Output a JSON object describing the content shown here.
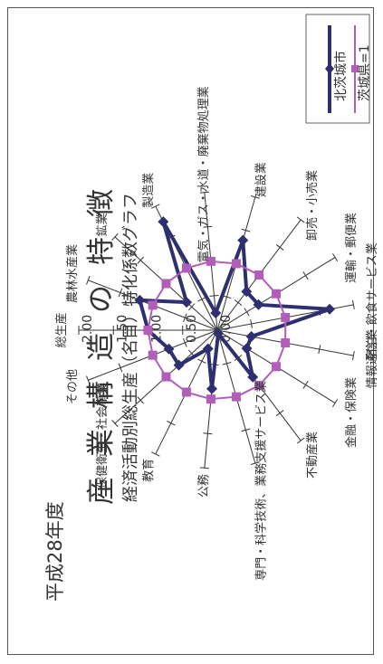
{
  "header": {
    "year": "平成28年度",
    "title": "産業構造の特徴",
    "subtitle": "経済活動別総生産（名目）特化係数グラフ"
  },
  "legend": {
    "items": [
      {
        "label": "北茨城市",
        "color": "#2e2f6e",
        "marker": "diamond"
      },
      {
        "label": "茨城県=1",
        "color": "#b15eb8",
        "marker": "square"
      }
    ]
  },
  "chart_data": {
    "type": "radar",
    "title": "産業構造の特徴",
    "subtitle": "経済活動別総生産（名目）特化係数グラフ",
    "categories": [
      "総生産",
      "農林水産業",
      "鉱業",
      "製造業",
      "電気・ガス・水道・廃棄物処理業",
      "建設業",
      "卸売・小売業",
      "運輸・郵便業",
      "宿泊・飲食サービス業",
      "情報通信業",
      "金融・保険業",
      "不動産業",
      "専門・科学技術、業務支援サービス業",
      "公務",
      "教育",
      "保健衛生・社会事業",
      "その他"
    ],
    "radial_ticks": [
      0.0,
      0.5,
      1.0,
      1.5,
      2.0
    ],
    "radial_tick_labels": [
      "0.00",
      "0.50",
      "1.00",
      "1.50",
      "2.00"
    ],
    "rlim": [
      0,
      2.0
    ],
    "series": [
      {
        "name": "北茨城市",
        "values": [
          1.0,
          1.2,
          0.6,
          1.75,
          0.25,
          1.35,
          0.7,
          0.7,
          1.65,
          0.5,
          0.5,
          0.85,
          0.05,
          0.85,
          0.3,
          0.75,
          0.75
        ],
        "color": "#2e2f6e"
      },
      {
        "name": "茨城県=1",
        "values": [
          1,
          1,
          1,
          1,
          1,
          1,
          1,
          1,
          1,
          1,
          1,
          1,
          1,
          1,
          1,
          1,
          1
        ],
        "color": "#b15eb8"
      }
    ]
  }
}
